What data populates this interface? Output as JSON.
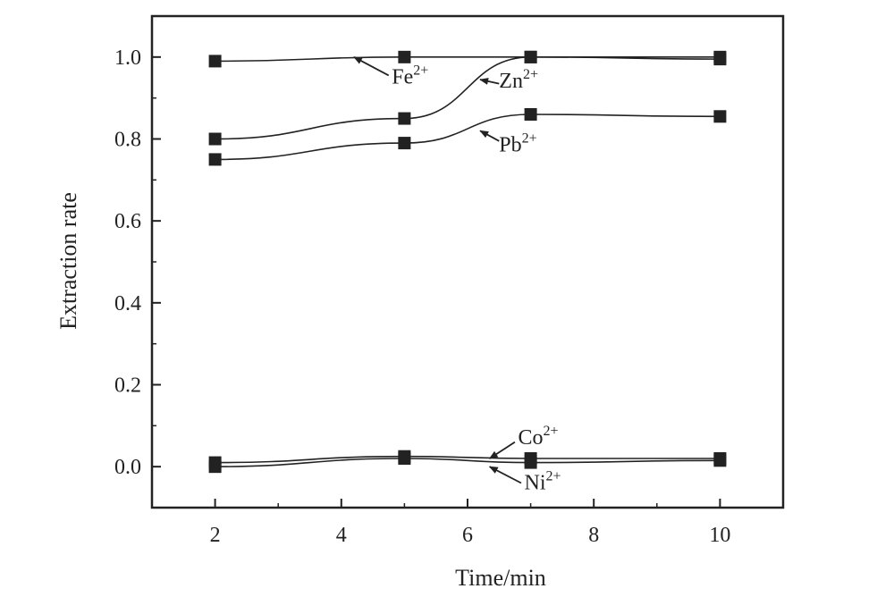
{
  "chart_data": {
    "type": "line",
    "title": "",
    "xlabel": "Time/min",
    "ylabel": "Extraction rate",
    "x": [
      2,
      5,
      7,
      10
    ],
    "xlim": [
      1,
      11
    ],
    "ylim": [
      -0.1,
      1.1
    ],
    "xticks": [
      2,
      4,
      6,
      8,
      10
    ],
    "yticks": [
      0.0,
      0.2,
      0.4,
      0.6,
      0.8,
      1.0
    ],
    "xtick_labels": [
      "2",
      "4",
      "6",
      "8",
      "10"
    ],
    "ytick_labels": [
      "0.0",
      "0.2",
      "0.4",
      "0.6",
      "0.8",
      "1.0"
    ],
    "grid": false,
    "legend": "none",
    "marker": "square",
    "color": "#222222",
    "series": [
      {
        "name": "Fe2+",
        "ion": "Fe",
        "charge": "2+",
        "values": [
          0.99,
          1.0,
          1.0,
          1.0
        ]
      },
      {
        "name": "Zn2+",
        "ion": "Zn",
        "charge": "2+",
        "values": [
          0.8,
          0.85,
          1.0,
          0.995
        ]
      },
      {
        "name": "Pb2+",
        "ion": "Pb",
        "charge": "2+",
        "values": [
          0.75,
          0.79,
          0.86,
          0.855
        ]
      },
      {
        "name": "Co2+",
        "ion": "Co",
        "charge": "2+",
        "values": [
          0.01,
          0.025,
          0.02,
          0.02
        ]
      },
      {
        "name": "Ni2+",
        "ion": "Ni",
        "charge": "2+",
        "values": [
          0.0,
          0.02,
          0.01,
          0.015
        ]
      }
    ]
  }
}
